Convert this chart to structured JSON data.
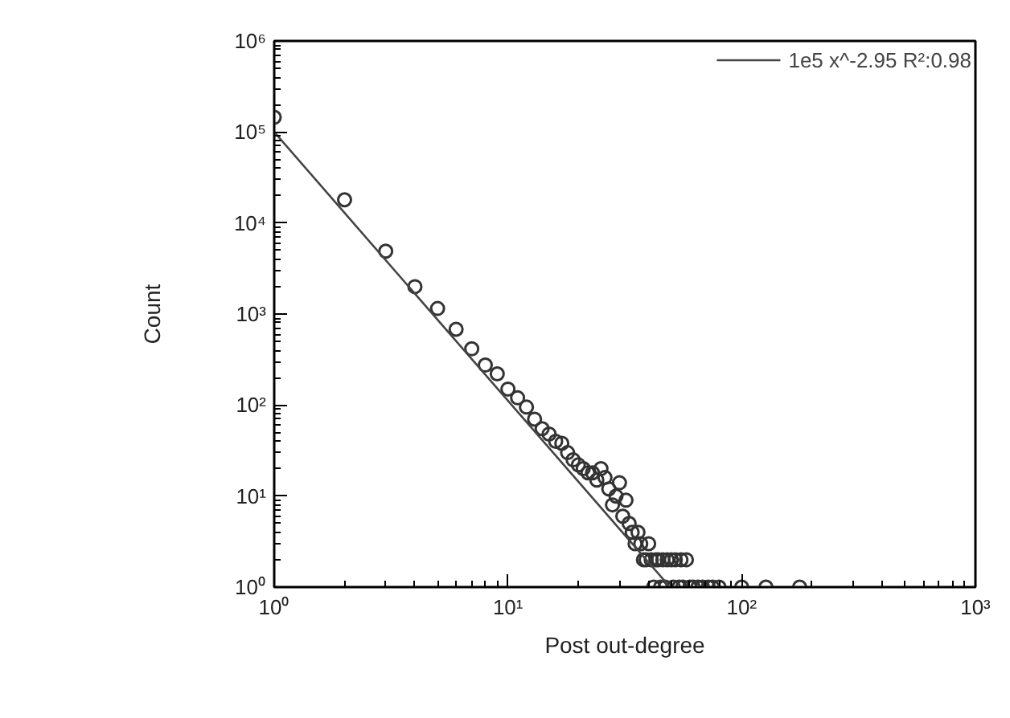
{
  "chart_data": {
    "type": "scatter",
    "xlabel": "Post out-degree",
    "ylabel": "Count",
    "log": "xy",
    "grid": false,
    "legend": "top right",
    "xlim": [
      1,
      1000
    ],
    "ylim": [
      1,
      1000000
    ],
    "xticks": [
      {
        "value": 1,
        "label": "10⁰"
      },
      {
        "value": 10,
        "label": "10¹"
      },
      {
        "value": 100,
        "label": "10²"
      },
      {
        "value": 1000,
        "label": "10³"
      }
    ],
    "yticks": [
      {
        "value": 1,
        "label": "10⁰"
      },
      {
        "value": 10,
        "label": "10¹"
      },
      {
        "value": 100,
        "label": "10²"
      },
      {
        "value": 1000,
        "label": "10³"
      },
      {
        "value": 10000,
        "label": "10⁴"
      },
      {
        "value": 100000,
        "label": "10⁵"
      },
      {
        "value": 1000000,
        "label": "10⁶"
      }
    ],
    "series": [
      {
        "color": "#333333",
        "marker": "circle",
        "x": [
          1,
          2,
          3,
          4,
          5,
          6,
          7,
          8,
          9,
          10,
          11,
          12,
          13,
          14,
          15,
          16,
          17,
          18,
          19,
          20,
          21,
          22,
          23,
          24,
          25,
          26,
          27,
          28,
          29,
          30,
          31,
          32,
          33,
          34,
          35,
          36,
          37,
          38,
          39,
          40,
          41,
          42,
          43,
          44,
          45,
          46,
          47,
          48,
          50,
          51,
          52,
          54,
          55,
          56,
          58,
          60,
          62,
          65,
          68,
          72,
          75,
          80,
          100,
          127,
          177
        ],
        "values": [
          145000,
          18000,
          4900,
          2000,
          1150,
          680,
          415,
          275,
          220,
          150,
          120,
          95,
          70,
          55,
          48,
          40,
          38,
          30,
          25,
          22,
          20,
          18,
          18,
          15,
          20,
          16,
          12,
          8,
          10,
          14,
          6,
          9,
          5,
          4,
          3,
          4,
          3,
          2,
          2,
          3,
          2,
          1,
          2,
          2,
          1,
          2,
          1,
          2,
          2,
          1,
          2,
          1,
          2,
          1,
          2,
          1,
          1,
          1,
          1,
          1,
          1,
          1,
          1,
          1,
          1
        ]
      },
      {
        "type": "line",
        "name": "1e5 x^-2.95 R²:0.98",
        "color": "#444444",
        "line_style": "solid",
        "x": [
          1,
          49.4
        ],
        "values": [
          100000,
          1
        ]
      }
    ]
  }
}
